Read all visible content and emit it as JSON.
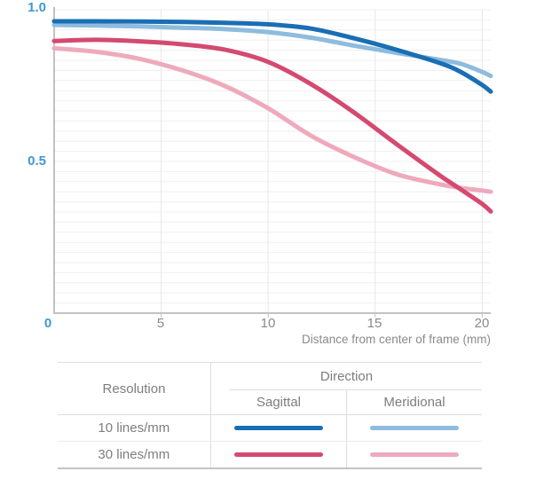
{
  "chart": {
    "y_axis": {
      "top_label": "1.0",
      "mid_label": "0.5"
    },
    "x_axis": {
      "labels": [
        "0",
        "5",
        "10",
        "15",
        "20"
      ],
      "title": "Distance from center of frame (mm)"
    }
  },
  "chart_data": {
    "type": "line",
    "title": "",
    "xlabel": "Distance from center of frame (mm)",
    "ylabel": "",
    "xlim": [
      0,
      20.4
    ],
    "ylim": [
      0,
      1.0
    ],
    "x_ticks": [
      0,
      5,
      10,
      15,
      20
    ],
    "y_ticks": [
      0,
      0.5,
      1.0
    ],
    "grid": "fine horizontal pinstripes; vertical lines at x ticks",
    "legend_position": "table below chart",
    "x": [
      0,
      2,
      4,
      6,
      8,
      10,
      12,
      14,
      16,
      18,
      19,
      20,
      20.4
    ],
    "series": [
      {
        "id": "10-sagittal",
        "name": "10 lines/mm Sagittal",
        "color": "#1a6eb4",
        "values": [
          0.962,
          0.962,
          0.961,
          0.96,
          0.957,
          0.952,
          0.938,
          0.906,
          0.868,
          0.825,
          0.795,
          0.752,
          0.73
        ]
      },
      {
        "id": "10-meridional",
        "name": "10 lines/mm Meridional",
        "color": "#8ebcde",
        "values": [
          0.95,
          0.948,
          0.945,
          0.941,
          0.936,
          0.926,
          0.908,
          0.882,
          0.858,
          0.835,
          0.822,
          0.795,
          0.782
        ]
      },
      {
        "id": "30-sagittal",
        "name": "30 lines/mm Sagittal",
        "color": "#d44a70",
        "values": [
          0.897,
          0.901,
          0.896,
          0.886,
          0.868,
          0.828,
          0.755,
          0.662,
          0.557,
          0.455,
          0.408,
          0.36,
          0.335
        ]
      },
      {
        "id": "30-meridional",
        "name": "30 lines/mm Meridional",
        "color": "#eeaabc",
        "values": [
          0.873,
          0.861,
          0.838,
          0.8,
          0.748,
          0.675,
          0.585,
          0.515,
          0.458,
          0.425,
          0.413,
          0.404,
          0.4
        ]
      }
    ]
  },
  "legend": {
    "col_resolution": "Resolution",
    "col_direction": "Direction",
    "col_sagittal": "Sagittal",
    "col_meridional": "Meridional",
    "rows": [
      {
        "label": "10 lines/mm",
        "sagittal_color": "#1a6eb4",
        "meridional_color": "#8ebcde"
      },
      {
        "label": "30 lines/mm",
        "sagittal_color": "#d44a70",
        "meridional_color": "#eeaabc"
      }
    ]
  },
  "colors": {
    "axis_label_blue": "#3e97d3",
    "axis_line_gray": "#c2c2c2",
    "tick_label_gray": "#8a8a8a",
    "gridline": "#efefef"
  }
}
